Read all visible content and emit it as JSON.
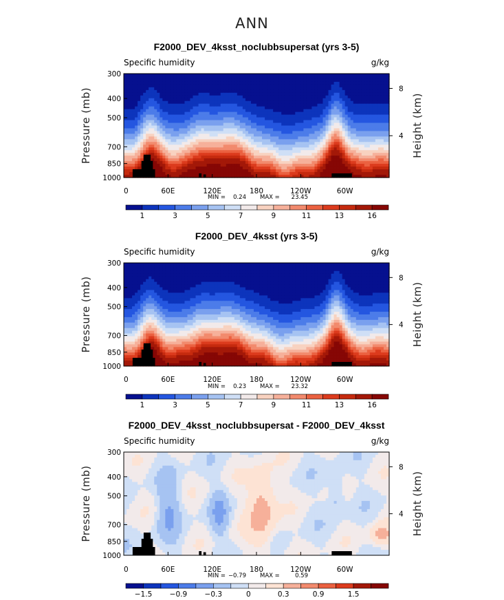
{
  "figure_title": "ANN",
  "chart_data": [
    {
      "type": "heatmap",
      "title": "F2000_DEV_4ksst_noclubbsupersat (yrs 3-5)",
      "variable": "Specific humidity",
      "units": "g/kg",
      "ylabel": "Pressure (mb)",
      "y2label": "Height (km)",
      "x_ticks": [
        "0",
        "60E",
        "120E",
        "180",
        "120W",
        "60W"
      ],
      "y_ticks": [
        "300",
        "400",
        "500",
        "700",
        "850",
        "1000"
      ],
      "y2_ticks": [
        "8",
        "4"
      ],
      "stats": {
        "min_label": "MIN =",
        "min": "0.24",
        "max_label": "MAX =",
        "max": "23.45"
      },
      "colorbar": {
        "labels": [
          "1",
          "3",
          "5",
          "7",
          "9",
          "11",
          "13",
          "16"
        ],
        "colors": [
          "#06108f",
          "#0d34bc",
          "#2456e0",
          "#4c7ce9",
          "#7aa0ee",
          "#a6c3f2",
          "#cfdff6",
          "#f2eaea",
          "#f8d2c0",
          "#f6b09a",
          "#f28a6d",
          "#eb6140",
          "#dc3b1d",
          "#c52a0e",
          "#a31808",
          "#860705"
        ]
      },
      "field": "mean"
    },
    {
      "type": "heatmap",
      "title": "F2000_DEV_4ksst (yrs 3-5)",
      "variable": "Specific humidity",
      "units": "g/kg",
      "ylabel": "Pressure (mb)",
      "y2label": "Height (km)",
      "x_ticks": [
        "0",
        "60E",
        "120E",
        "180",
        "120W",
        "60W"
      ],
      "y_ticks": [
        "300",
        "400",
        "500",
        "700",
        "850",
        "1000"
      ],
      "y2_ticks": [
        "8",
        "4"
      ],
      "stats": {
        "min_label": "MIN =",
        "min": "0.23",
        "max_label": "MAX =",
        "max": "23.32"
      },
      "colorbar": {
        "labels": [
          "1",
          "3",
          "5",
          "7",
          "9",
          "11",
          "13",
          "16"
        ],
        "colors": [
          "#06108f",
          "#0d34bc",
          "#2456e0",
          "#4c7ce9",
          "#7aa0ee",
          "#a6c3f2",
          "#cfdff6",
          "#f2eaea",
          "#f8d2c0",
          "#f6b09a",
          "#f28a6d",
          "#eb6140",
          "#dc3b1d",
          "#c52a0e",
          "#a31808",
          "#860705"
        ]
      },
      "field": "mean"
    },
    {
      "type": "heatmap",
      "title": "F2000_DEV_4ksst_noclubbsupersat - F2000_DEV_4ksst",
      "variable": "Specific humidity",
      "units": "g/kg",
      "ylabel": "Pressure (mb)",
      "y2label": "Height (km)",
      "x_ticks": [
        "0",
        "60E",
        "120E",
        "180",
        "120W",
        "60W"
      ],
      "y_ticks": [
        "300",
        "400",
        "500",
        "700",
        "850",
        "1000"
      ],
      "y2_ticks": [
        "8",
        "4"
      ],
      "stats": {
        "min_label": "MIN =",
        "min": "−0.79",
        "max_label": "MAX =",
        "max": "0.59"
      },
      "colorbar": {
        "labels": [
          "−1.5",
          "−0.9",
          "−0.3",
          "0",
          "0.3",
          "0.9",
          "1.5"
        ],
        "colors": [
          "#06108f",
          "#0d34bc",
          "#2456e0",
          "#4c7ce9",
          "#7aa0ee",
          "#a6c3f2",
          "#cfdff6",
          "#f2eaea",
          "#fde3d4",
          "#f6b09a",
          "#f28a6d",
          "#eb6140",
          "#dc3b1d",
          "#a31808",
          "#860705"
        ]
      },
      "field": "difference"
    }
  ]
}
